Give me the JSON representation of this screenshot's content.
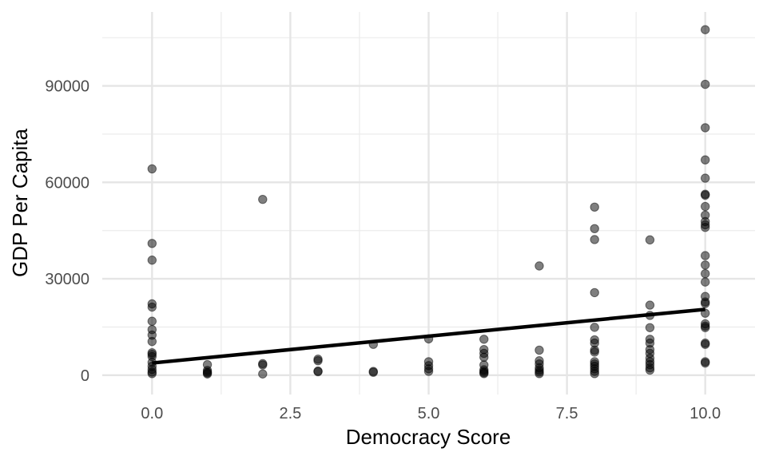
{
  "chart_data": {
    "type": "scatter",
    "xlabel": "Democracy Score",
    "ylabel": "GDP Per Capita",
    "xlim": [
      -0.9,
      10.9
    ],
    "ylim": [
      -6000,
      113000
    ],
    "x_ticks": [
      0,
      2.5,
      5,
      7.5,
      10
    ],
    "x_tick_labels": [
      "0.0",
      "2.5",
      "5.0",
      "7.5",
      "10.0"
    ],
    "y_ticks": [
      0,
      30000,
      60000,
      90000
    ],
    "y_tick_labels": [
      "0",
      "30000",
      "60000",
      "90000"
    ],
    "x_minor_grid": [
      1.25,
      3.75,
      6.25,
      8.75
    ],
    "y_minor_grid": [
      15000,
      45000,
      75000,
      105000
    ],
    "grid": true,
    "point_color": "#000000",
    "point_opacity": 0.5,
    "trend_line": {
      "color": "#000000",
      "x": [
        0,
        10
      ],
      "y": [
        3800,
        20500
      ]
    },
    "points": [
      {
        "x": 0,
        "y": 64200
      },
      {
        "x": 0,
        "y": 41000
      },
      {
        "x": 0,
        "y": 35800
      },
      {
        "x": 0,
        "y": 22200
      },
      {
        "x": 0,
        "y": 21200
      },
      {
        "x": 0,
        "y": 16800
      },
      {
        "x": 0,
        "y": 14200
      },
      {
        "x": 0,
        "y": 12500
      },
      {
        "x": 0,
        "y": 10500
      },
      {
        "x": 0,
        "y": 7000
      },
      {
        "x": 0,
        "y": 6500
      },
      {
        "x": 0,
        "y": 5800
      },
      {
        "x": 0,
        "y": 4000
      },
      {
        "x": 0,
        "y": 2800
      },
      {
        "x": 0,
        "y": 1800
      },
      {
        "x": 0,
        "y": 1000
      },
      {
        "x": 0,
        "y": 500
      },
      {
        "x": 1,
        "y": 3300
      },
      {
        "x": 1,
        "y": 1500
      },
      {
        "x": 1,
        "y": 1000
      },
      {
        "x": 1,
        "y": 700
      },
      {
        "x": 1,
        "y": 400
      },
      {
        "x": 2,
        "y": 54700
      },
      {
        "x": 2,
        "y": 3600
      },
      {
        "x": 2,
        "y": 3200
      },
      {
        "x": 2,
        "y": 400
      },
      {
        "x": 3,
        "y": 5000
      },
      {
        "x": 3,
        "y": 4500
      },
      {
        "x": 3,
        "y": 1300
      },
      {
        "x": 3,
        "y": 1100
      },
      {
        "x": 4,
        "y": 9600
      },
      {
        "x": 4,
        "y": 1200
      },
      {
        "x": 4,
        "y": 900
      },
      {
        "x": 5,
        "y": 11300
      },
      {
        "x": 5,
        "y": 4200
      },
      {
        "x": 5,
        "y": 3000
      },
      {
        "x": 5,
        "y": 2000
      },
      {
        "x": 5,
        "y": 1200
      },
      {
        "x": 6,
        "y": 11200
      },
      {
        "x": 6,
        "y": 8000
      },
      {
        "x": 6,
        "y": 6800
      },
      {
        "x": 6,
        "y": 5600
      },
      {
        "x": 6,
        "y": 3200
      },
      {
        "x": 6,
        "y": 1700
      },
      {
        "x": 6,
        "y": 1200
      },
      {
        "x": 6,
        "y": 800
      },
      {
        "x": 6,
        "y": 500
      },
      {
        "x": 7,
        "y": 34000
      },
      {
        "x": 7,
        "y": 7800
      },
      {
        "x": 7,
        "y": 4500
      },
      {
        "x": 7,
        "y": 3500
      },
      {
        "x": 7,
        "y": 2300
      },
      {
        "x": 7,
        "y": 1600
      },
      {
        "x": 7,
        "y": 1000
      },
      {
        "x": 7,
        "y": 500
      },
      {
        "x": 8,
        "y": 52300
      },
      {
        "x": 8,
        "y": 45600
      },
      {
        "x": 8,
        "y": 42200
      },
      {
        "x": 8,
        "y": 25700
      },
      {
        "x": 8,
        "y": 14900
      },
      {
        "x": 8,
        "y": 11000
      },
      {
        "x": 8,
        "y": 10000
      },
      {
        "x": 8,
        "y": 7800
      },
      {
        "x": 8,
        "y": 7200
      },
      {
        "x": 8,
        "y": 4200
      },
      {
        "x": 8,
        "y": 3500
      },
      {
        "x": 8,
        "y": 2800
      },
      {
        "x": 8,
        "y": 2000
      },
      {
        "x": 8,
        "y": 1200
      },
      {
        "x": 8,
        "y": 500
      },
      {
        "x": 9,
        "y": 42100
      },
      {
        "x": 9,
        "y": 21800
      },
      {
        "x": 9,
        "y": 18600
      },
      {
        "x": 9,
        "y": 14800
      },
      {
        "x": 9,
        "y": 11200
      },
      {
        "x": 9,
        "y": 10000
      },
      {
        "x": 9,
        "y": 8000
      },
      {
        "x": 9,
        "y": 6800
      },
      {
        "x": 9,
        "y": 5300
      },
      {
        "x": 9,
        "y": 4200
      },
      {
        "x": 9,
        "y": 3300
      },
      {
        "x": 9,
        "y": 2300
      },
      {
        "x": 9,
        "y": 1600
      },
      {
        "x": 10,
        "y": 107500
      },
      {
        "x": 10,
        "y": 90500
      },
      {
        "x": 10,
        "y": 77000
      },
      {
        "x": 10,
        "y": 67000
      },
      {
        "x": 10,
        "y": 61300
      },
      {
        "x": 10,
        "y": 56300
      },
      {
        "x": 10,
        "y": 56000
      },
      {
        "x": 10,
        "y": 52500
      },
      {
        "x": 10,
        "y": 49800
      },
      {
        "x": 10,
        "y": 47800
      },
      {
        "x": 10,
        "y": 46800
      },
      {
        "x": 10,
        "y": 46000
      },
      {
        "x": 10,
        "y": 37200
      },
      {
        "x": 10,
        "y": 34300
      },
      {
        "x": 10,
        "y": 31600
      },
      {
        "x": 10,
        "y": 29000
      },
      {
        "x": 10,
        "y": 24500
      },
      {
        "x": 10,
        "y": 22800
      },
      {
        "x": 10,
        "y": 22300
      },
      {
        "x": 10,
        "y": 19300
      },
      {
        "x": 10,
        "y": 16000
      },
      {
        "x": 10,
        "y": 15300
      },
      {
        "x": 10,
        "y": 14800
      },
      {
        "x": 10,
        "y": 10000
      },
      {
        "x": 10,
        "y": 9600
      },
      {
        "x": 10,
        "y": 4200
      },
      {
        "x": 10,
        "y": 3800
      }
    ]
  }
}
